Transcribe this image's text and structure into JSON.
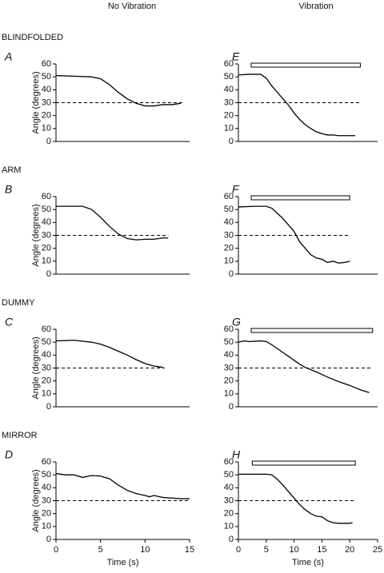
{
  "column_titles": [
    "No Vibration",
    "Vibration"
  ],
  "row_titles": [
    "BLINDFOLDED",
    "ARM",
    "DUMMY",
    "MIRROR"
  ],
  "chart_data": [
    {
      "type": "line",
      "label": "A",
      "color": "#000000",
      "xlim": [
        0,
        15
      ],
      "ylim": [
        0,
        60
      ],
      "yticks": [
        0,
        10,
        20,
        30,
        40,
        50,
        60
      ],
      "ylabel": "Angle (degrees)",
      "reference": {
        "y": 30,
        "x": [
          0,
          14.2
        ]
      },
      "x": [
        0,
        2,
        4,
        5,
        6,
        7,
        8,
        9,
        10,
        11,
        12,
        13,
        14
      ],
      "values": [
        51,
        50.5,
        50,
        48.5,
        44,
        38,
        33,
        29.5,
        27.5,
        27.5,
        28.5,
        28.5,
        29.5
      ]
    },
    {
      "type": "line",
      "label": "E",
      "color": "#000000",
      "xlim": [
        0,
        25
      ],
      "ylim": [
        0,
        60
      ],
      "yticks": [
        0,
        10,
        20,
        30,
        40,
        50,
        60
      ],
      "reference": {
        "y": 30,
        "x": [
          0,
          22
        ]
      },
      "vibration": [
        2.3,
        21.9
      ],
      "x": [
        0,
        2,
        4,
        5,
        6,
        7,
        8,
        9,
        10,
        11,
        12,
        13,
        14,
        15,
        16,
        17,
        18,
        20,
        21
      ],
      "values": [
        51.5,
        52,
        52,
        49,
        43,
        38,
        33,
        28,
        22,
        17,
        13,
        10,
        7.5,
        6,
        5,
        5,
        4.5,
        4.5,
        4.5
      ]
    },
    {
      "type": "line",
      "label": "B",
      "color": "#000000",
      "xlim": [
        0,
        15
      ],
      "ylim": [
        0,
        60
      ],
      "yticks": [
        0,
        10,
        20,
        30,
        40,
        50,
        60
      ],
      "ylabel": "Angle (degrees)",
      "reference": {
        "y": 30,
        "x": [
          0,
          12.6
        ]
      },
      "x": [
        0,
        3,
        4,
        5,
        6,
        7,
        8,
        9,
        10,
        11,
        12,
        12.6
      ],
      "values": [
        52.5,
        52.5,
        50,
        44,
        37,
        31,
        27.5,
        26.5,
        27,
        27,
        28,
        28
      ]
    },
    {
      "type": "line",
      "label": "F",
      "color": "#000000",
      "xlim": [
        0,
        25
      ],
      "ylim": [
        0,
        60
      ],
      "yticks": [
        0,
        10,
        20,
        30,
        40,
        50,
        60
      ],
      "reference": {
        "y": 30,
        "x": [
          0,
          20
        ]
      },
      "vibration": [
        2.3,
        20
      ],
      "x": [
        0,
        3,
        5,
        6,
        7,
        8,
        9,
        10,
        11,
        12,
        13,
        14,
        15,
        16,
        17,
        18,
        19,
        20
      ],
      "values": [
        52,
        52.5,
        52.5,
        51,
        47,
        43,
        38,
        33,
        25,
        20,
        15,
        12.5,
        11.5,
        9,
        10,
        8.5,
        9,
        10
      ]
    },
    {
      "type": "line",
      "label": "C",
      "color": "#000000",
      "xlim": [
        0,
        15
      ],
      "ylim": [
        0,
        60
      ],
      "yticks": [
        0,
        10,
        20,
        30,
        40,
        50,
        60
      ],
      "ylabel": "Angle (degrees)",
      "reference": {
        "y": 30,
        "x": [
          0,
          12.2
        ]
      },
      "x": [
        0,
        2,
        4,
        5,
        6,
        7,
        8,
        9,
        10,
        11,
        12
      ],
      "values": [
        51,
        51.5,
        50,
        48.5,
        46,
        43,
        40,
        36.5,
        33.5,
        31.5,
        30.5
      ]
    },
    {
      "type": "line",
      "label": "G",
      "color": "#000000",
      "xlim": [
        0,
        25
      ],
      "ylim": [
        0,
        60
      ],
      "yticks": [
        0,
        10,
        20,
        30,
        40,
        50,
        60
      ],
      "reference": {
        "y": 30,
        "x": [
          0,
          24
        ]
      },
      "vibration": [
        2.3,
        24.1
      ],
      "x": [
        0,
        1,
        2,
        4,
        5,
        6,
        7,
        8,
        9,
        10,
        11,
        12,
        14,
        16,
        18,
        20,
        22,
        23.5
      ],
      "values": [
        50,
        51,
        50.5,
        51,
        50.5,
        48,
        45,
        42,
        39,
        36,
        33,
        30.5,
        27,
        23,
        19.5,
        16.5,
        13,
        11
      ]
    },
    {
      "type": "line",
      "label": "D",
      "color": "#000000",
      "xlim": [
        0,
        15
      ],
      "ylim": [
        0,
        60
      ],
      "yticks": [
        0,
        10,
        20,
        30,
        40,
        50,
        60
      ],
      "ylabel": "Angle (degrees)",
      "xlabel": "Time (s)",
      "xticks": [
        0,
        5,
        10,
        15
      ],
      "reference": {
        "y": 30,
        "x": [
          0,
          15
        ]
      },
      "x": [
        0,
        1,
        2,
        3,
        4,
        5,
        6,
        7,
        8,
        9,
        10,
        10.5,
        11,
        12,
        13,
        14,
        15
      ],
      "values": [
        51,
        50,
        50,
        48,
        49.5,
        49,
        47,
        42,
        38,
        35.5,
        34,
        33,
        34,
        32.5,
        32,
        31.5,
        31.5
      ]
    },
    {
      "type": "line",
      "label": "H",
      "color": "#000000",
      "xlim": [
        0,
        25
      ],
      "ylim": [
        0,
        60
      ],
      "yticks": [
        0,
        10,
        20,
        30,
        40,
        50,
        60
      ],
      "xlabel": "Time (s)",
      "xticks": [
        0,
        5,
        10,
        15,
        20,
        25
      ],
      "reference": {
        "y": 30,
        "x": [
          0,
          21
        ]
      },
      "vibration": [
        2.5,
        21
      ],
      "x": [
        0,
        5,
        6,
        7,
        8,
        9,
        10,
        11,
        12,
        13,
        14,
        15,
        16,
        17,
        18,
        19,
        20,
        20.5
      ],
      "values": [
        50.5,
        50.5,
        50,
        46.5,
        42,
        37,
        32,
        27,
        23,
        20,
        18,
        17.5,
        14.5,
        13,
        12.5,
        12.5,
        12.5,
        13
      ]
    }
  ]
}
